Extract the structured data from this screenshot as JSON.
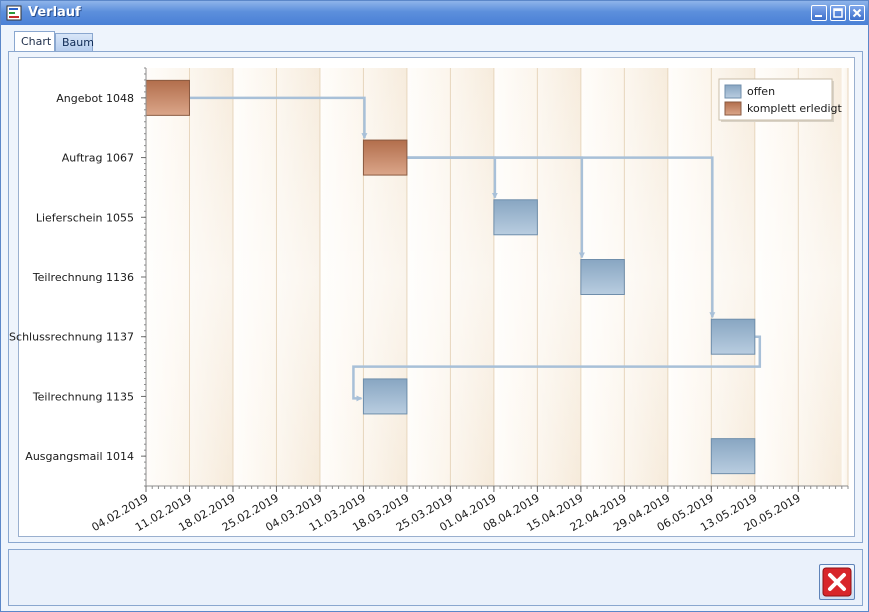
{
  "window": {
    "title": "Verlauf"
  },
  "tabs": [
    {
      "label": "Chart",
      "active": true
    },
    {
      "label": "Baum",
      "active": false
    }
  ],
  "colors": {
    "offen": "#9bb5cd",
    "erledigt": "#c98f6e",
    "connector": "#a8c0d8"
  },
  "chart_data": {
    "type": "gantt",
    "x_ticks": [
      "04.02.2019",
      "11.02.2019",
      "18.02.2019",
      "25.02.2019",
      "04.03.2019",
      "11.03.2019",
      "18.03.2019",
      "25.03.2019",
      "01.04.2019",
      "08.04.2019",
      "15.04.2019",
      "22.04.2019",
      "29.04.2019",
      "06.05.2019",
      "13.05.2019",
      "20.05.2019"
    ],
    "x_range": [
      "04.02.2019",
      "28.05.2019"
    ],
    "categories": [
      "Angebot 1048",
      "Auftrag 1067",
      "Lieferschein 1055",
      "Teilrechnung 1136",
      "Schlussrechnung 1137",
      "Teilrechnung 1135",
      "Ausgangsmail 1014"
    ],
    "tasks": [
      {
        "label": "Angebot 1048",
        "start": "04.02.2019",
        "end": "11.02.2019",
        "status": "komplett erledigt"
      },
      {
        "label": "Auftrag 1067",
        "start": "11.03.2019",
        "end": "18.03.2019",
        "status": "komplett erledigt"
      },
      {
        "label": "Lieferschein 1055",
        "start": "01.04.2019",
        "end": "08.04.2019",
        "status": "offen"
      },
      {
        "label": "Teilrechnung 1136",
        "start": "15.04.2019",
        "end": "22.04.2019",
        "status": "offen"
      },
      {
        "label": "Schlussrechnung 1137",
        "start": "06.05.2019",
        "end": "13.05.2019",
        "status": "offen"
      },
      {
        "label": "Teilrechnung 1135",
        "start": "11.03.2019",
        "end": "18.03.2019",
        "status": "offen"
      },
      {
        "label": "Ausgangsmail 1014",
        "start": "06.05.2019",
        "end": "13.05.2019",
        "status": "offen"
      }
    ],
    "links": [
      {
        "from": "Angebot 1048",
        "to": "Auftrag 1067"
      },
      {
        "from": "Auftrag 1067",
        "to": "Lieferschein 1055"
      },
      {
        "from": "Auftrag 1067",
        "to": "Teilrechnung 1136"
      },
      {
        "from": "Auftrag 1067",
        "to": "Schlussrechnung 1137"
      },
      {
        "from": "Schlussrechnung 1137",
        "to": "Teilrechnung 1135"
      }
    ],
    "legend": {
      "position": "top-right",
      "items": [
        {
          "label": "offen",
          "status": "offen"
        },
        {
          "label": "komplett erledigt",
          "status": "komplett erledigt"
        }
      ]
    },
    "grid": true
  }
}
